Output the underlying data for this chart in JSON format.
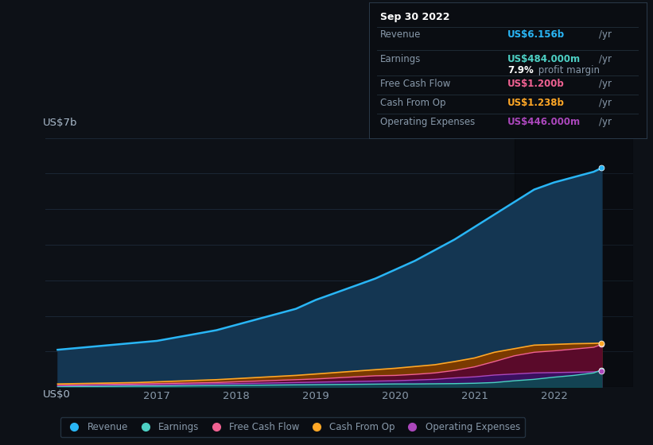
{
  "background_color": "#0d1117",
  "plot_bg_color": "#0d1117",
  "years": [
    2015.75,
    2016.0,
    2016.25,
    2016.5,
    2016.75,
    2017.0,
    2017.25,
    2017.5,
    2017.75,
    2018.0,
    2018.25,
    2018.5,
    2018.75,
    2019.0,
    2019.25,
    2019.5,
    2019.75,
    2020.0,
    2020.25,
    2020.5,
    2020.75,
    2021.0,
    2021.25,
    2021.5,
    2021.75,
    2022.0,
    2022.25,
    2022.5,
    2022.6
  ],
  "revenue": [
    1.05,
    1.1,
    1.15,
    1.2,
    1.25,
    1.3,
    1.4,
    1.5,
    1.6,
    1.75,
    1.9,
    2.05,
    2.2,
    2.45,
    2.65,
    2.85,
    3.05,
    3.3,
    3.55,
    3.85,
    4.15,
    4.5,
    4.85,
    5.2,
    5.55,
    5.75,
    5.9,
    6.05,
    6.156
  ],
  "earnings": [
    0.01,
    0.015,
    0.02,
    0.025,
    0.03,
    0.03,
    0.035,
    0.04,
    0.045,
    0.05,
    0.055,
    0.06,
    0.065,
    0.07,
    0.075,
    0.08,
    0.085,
    0.09,
    0.09,
    0.095,
    0.1,
    0.11,
    0.13,
    0.18,
    0.22,
    0.28,
    0.33,
    0.4,
    0.484
  ],
  "cash_from_op": [
    0.09,
    0.1,
    0.11,
    0.12,
    0.13,
    0.15,
    0.17,
    0.19,
    0.21,
    0.24,
    0.27,
    0.3,
    0.33,
    0.37,
    0.41,
    0.45,
    0.49,
    0.53,
    0.58,
    0.63,
    0.72,
    0.82,
    0.98,
    1.08,
    1.18,
    1.2,
    1.22,
    1.23,
    1.238
  ],
  "free_cash_flow": [
    0.05,
    0.06,
    0.07,
    0.08,
    0.09,
    0.1,
    0.11,
    0.12,
    0.13,
    0.15,
    0.17,
    0.19,
    0.21,
    0.23,
    0.26,
    0.29,
    0.32,
    0.33,
    0.36,
    0.4,
    0.47,
    0.57,
    0.72,
    0.88,
    0.98,
    1.02,
    1.07,
    1.12,
    1.2
  ],
  "operating_expenses": [
    0.03,
    0.04,
    0.05,
    0.055,
    0.06,
    0.065,
    0.075,
    0.085,
    0.095,
    0.1,
    0.11,
    0.12,
    0.13,
    0.14,
    0.15,
    0.16,
    0.17,
    0.18,
    0.2,
    0.22,
    0.26,
    0.29,
    0.34,
    0.37,
    0.4,
    0.41,
    0.42,
    0.43,
    0.446
  ],
  "revenue_line_color": "#29b6f6",
  "earnings_line_color": "#4dd0c4",
  "cash_from_op_line_color": "#ffa726",
  "free_cash_flow_line_color": "#f06292",
  "operating_expenses_line_color": "#ab47bc",
  "revenue_fill_color": "#143652",
  "cash_from_op_fill_color": "#7a3a00",
  "free_cash_flow_fill_color": "#5a0a2a",
  "operating_expenses_fill_color": "#3a1060",
  "earnings_fill_color": "#0a5050",
  "ylim": [
    0,
    7.0
  ],
  "xlim": [
    2015.6,
    2023.0
  ],
  "ylabel_top": "US$7b",
  "ylabel_bottom": "US$0",
  "grid_color": "#1e2d3d",
  "text_color": "#8899aa",
  "axis_label_color": "#aabbcc",
  "darker_bg_x": 2021.5,
  "info_box": {
    "date": "Sep 30 2022",
    "revenue_label": "Revenue",
    "revenue_value": "US$6.156b",
    "revenue_unit": "/yr",
    "revenue_color": "#29b6f6",
    "earnings_label": "Earnings",
    "earnings_value": "US$484.000m",
    "earnings_unit": "/yr",
    "earnings_color": "#4dd0c4",
    "margin_text": "7.9%",
    "margin_label": "profit margin",
    "fcf_label": "Free Cash Flow",
    "fcf_value": "US$1.200b",
    "fcf_unit": "/yr",
    "fcf_color": "#f06292",
    "cfop_label": "Cash From Op",
    "cfop_value": "US$1.238b",
    "cfop_unit": "/yr",
    "cfop_color": "#ffa726",
    "opex_label": "Operating Expenses",
    "opex_value": "US$446.000m",
    "opex_unit": "/yr",
    "opex_color": "#ab47bc"
  },
  "legend_items": [
    {
      "label": "Revenue",
      "color": "#29b6f6"
    },
    {
      "label": "Earnings",
      "color": "#4dd0c4"
    },
    {
      "label": "Free Cash Flow",
      "color": "#f06292"
    },
    {
      "label": "Cash From Op",
      "color": "#ffa726"
    },
    {
      "label": "Operating Expenses",
      "color": "#ab47bc"
    }
  ],
  "xticks": [
    2017,
    2018,
    2019,
    2020,
    2021,
    2022
  ]
}
